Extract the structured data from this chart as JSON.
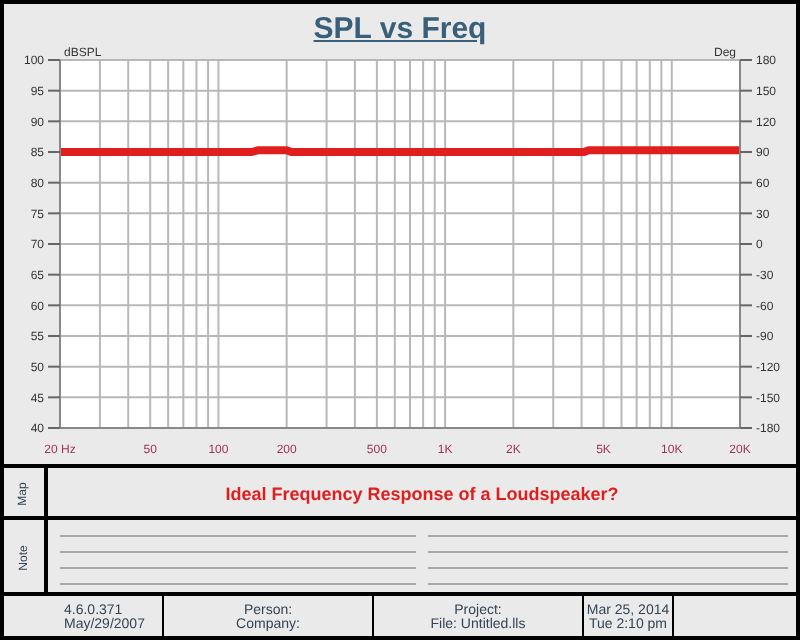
{
  "chart_data": {
    "type": "line",
    "title": "SPL vs Freq",
    "ylabel": "dBSPL",
    "y2label": "Deg",
    "x": [
      20,
      140,
      150,
      200,
      210,
      4100,
      4300,
      20000
    ],
    "series": [
      {
        "color": "#e01e1e",
        "values": [
          85,
          85,
          85.3,
          85.3,
          85,
          85,
          85.3,
          85.3
        ]
      }
    ],
    "xlim": [
      20,
      20000
    ],
    "xticks": [
      {
        "value": 20,
        "label": "20 Hz"
      },
      {
        "value": 30,
        "label": null
      },
      {
        "value": 40,
        "label": null
      },
      50,
      {
        "value": 60,
        "label": null
      },
      {
        "value": 70,
        "label": null
      },
      {
        "value": 80,
        "label": null
      },
      {
        "value": 90,
        "label": null
      },
      100,
      200,
      {
        "value": 300,
        "label": null
      },
      {
        "value": 400,
        "label": null
      },
      500,
      {
        "value": 600,
        "label": null
      },
      {
        "value": 700,
        "label": null
      },
      {
        "value": 800,
        "label": null
      },
      {
        "value": 900,
        "label": null
      },
      {
        "value": 1000,
        "label": "1K"
      },
      {
        "value": 2000,
        "label": "2K"
      },
      {
        "value": 3000,
        "label": null
      },
      {
        "value": 4000,
        "label": null
      },
      {
        "value": 5000,
        "label": "5K"
      },
      {
        "value": 6000,
        "label": null
      },
      {
        "value": 7000,
        "label": null
      },
      {
        "value": 8000,
        "label": null
      },
      {
        "value": 9000,
        "label": null
      },
      {
        "value": 10000,
        "label": "10K"
      },
      {
        "value": 20000,
        "label": "20K"
      }
    ],
    "ylim": [
      40,
      100
    ],
    "yticks": [
      40,
      45,
      50,
      55,
      60,
      65,
      70,
      75,
      80,
      85,
      90,
      95,
      100
    ],
    "y2lim": [
      -180,
      180
    ],
    "y2ticks": [
      -180,
      -150,
      -120,
      -90,
      -60,
      -30,
      0,
      30,
      60,
      90,
      120,
      150,
      180
    ],
    "log": "x",
    "grid": true,
    "line_style": "solid",
    "annotations": [
      "Map",
      "Ideal Frequency Response of a Loudspeaker?",
      "Note",
      "4.6.0.371",
      "May/29/2007",
      "Person:",
      "Company:",
      "Project:",
      "File: Untitled.lls",
      "Mar 25, 2014",
      "Tue 2:10 pm"
    ]
  }
}
